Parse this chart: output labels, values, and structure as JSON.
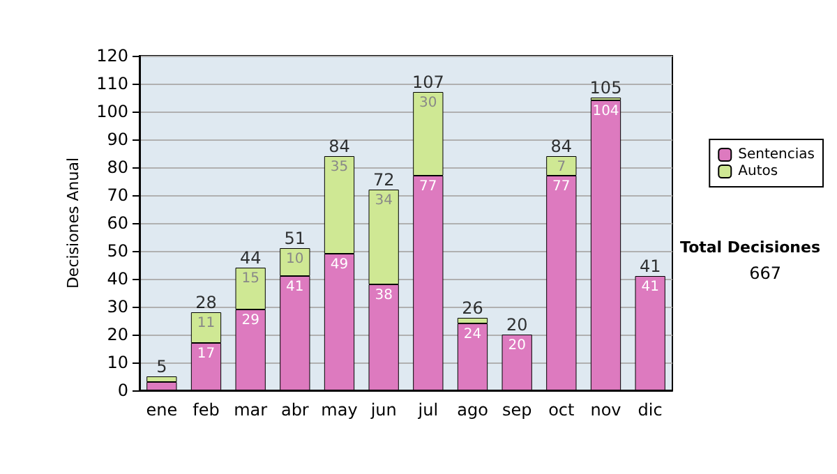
{
  "chart_data": {
    "type": "bar",
    "stacked": true,
    "ylabel": "Decisiones Anual",
    "categories": [
      "ene",
      "feb",
      "mar",
      "abr",
      "may",
      "jun",
      "jul",
      "ago",
      "sep",
      "oct",
      "nov",
      "dic"
    ],
    "series": [
      {
        "name": "Sentencias",
        "color": "#dd7abf",
        "values": [
          3,
          17,
          29,
          41,
          49,
          38,
          77,
          24,
          20,
          77,
          104,
          41
        ],
        "value_labels": [
          null,
          "17",
          "29",
          "41",
          "49",
          "38",
          "77",
          "24",
          "20",
          "77",
          "104",
          "41"
        ]
      },
      {
        "name": "Autos",
        "color": "#cfe894",
        "values": [
          2,
          11,
          15,
          10,
          35,
          34,
          30,
          2,
          0,
          7,
          1,
          0
        ],
        "value_labels": [
          null,
          "11",
          "15",
          "10",
          "35",
          "34",
          "30",
          null,
          null,
          "7",
          null,
          null
        ]
      }
    ],
    "totals": [
      "5",
      "28",
      "44",
      "51",
      "84",
      "72",
      "107",
      "26",
      "20",
      "84",
      "105",
      "41"
    ],
    "ylim": [
      0,
      120
    ],
    "yticks": [
      0,
      10,
      20,
      30,
      40,
      50,
      60,
      70,
      80,
      90,
      100,
      110,
      120
    ],
    "grid": "y",
    "legend": "right",
    "annotations": [
      "Total Decisiones",
      "667"
    ]
  }
}
